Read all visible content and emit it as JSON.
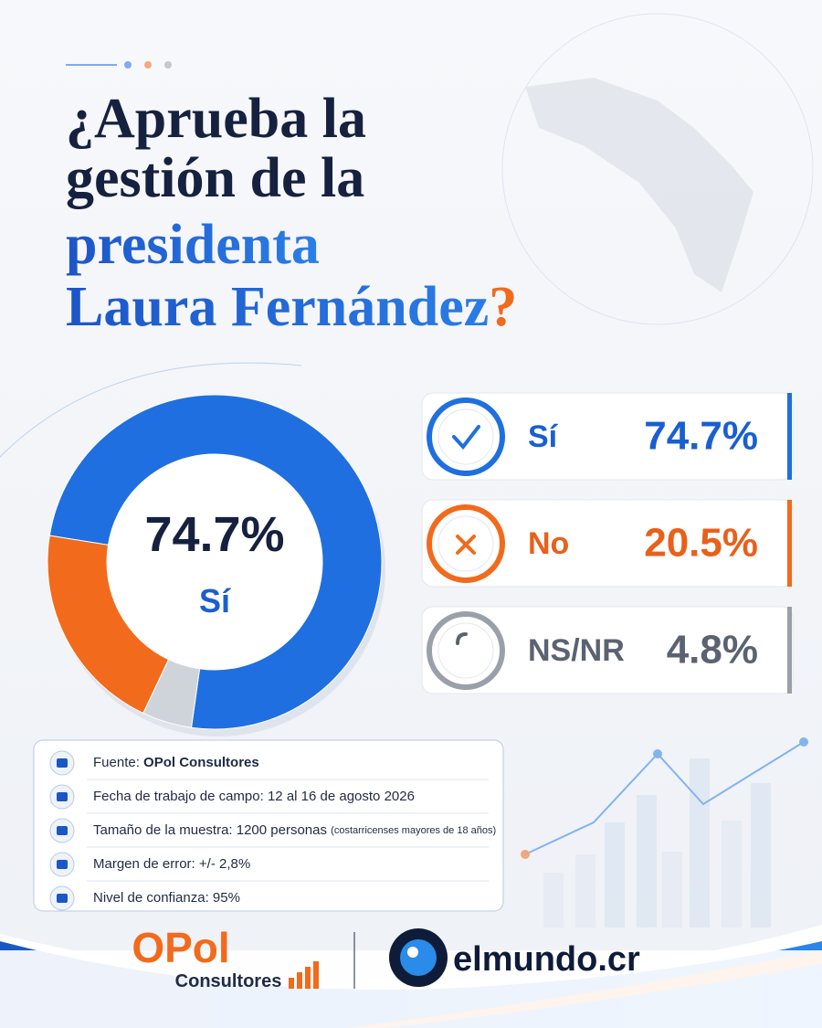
{
  "chart_data": {
    "type": "donut",
    "title_lines": [
      "¿Aprueba la",
      "gestión de la"
    ],
    "title_highlight": [
      "presidenta",
      "Laura Fernández"
    ],
    "title_end": "?",
    "categories": [
      "Sí",
      "No",
      "NS/NR"
    ],
    "values": [
      74.7,
      20.5,
      4.8
    ],
    "value_labels": [
      "74.7%",
      "20.5%",
      "4.8%"
    ],
    "colors": [
      "#1f6fe0",
      "#f26a1b",
      "#cfd3da"
    ],
    "text_colors": [
      "#1a5fd0",
      "#e8601a",
      "#5b6372"
    ]
  },
  "info": {
    "rows": [
      {
        "label": "Fuente:",
        "value": "OPol Consultores"
      },
      {
        "label": "Fecha de trabajo de campo:",
        "value": "12 al 16 de agosto 2026"
      },
      {
        "label": "Tamaño de la muestra:",
        "value": "1200 personas",
        "note": "(costarricenses mayores de 18 años)"
      },
      {
        "label": "Margen de error:",
        "value": "+/- 2,8%"
      },
      {
        "label": "Nivel de confianza:",
        "value": "95%"
      }
    ]
  },
  "footer": {
    "brand": "OPol",
    "brand_sub": "Consultores",
    "partner": "elmundo.cr"
  }
}
